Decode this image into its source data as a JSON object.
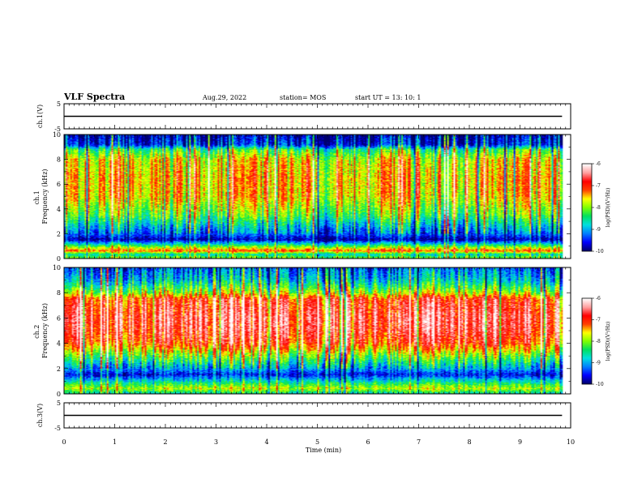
{
  "header": {
    "title": "VLF Spectra",
    "date": "Aug.29, 2022",
    "station": "station= MOS",
    "start": "start  UT  =   13: 10: 1"
  },
  "colors": {
    "scale": [
      "#00006e",
      "#0000ff",
      "#0080ff",
      "#00e0e0",
      "#00e060",
      "#80ff00",
      "#ffff00",
      "#ff4000",
      "#ff0000",
      "#ffa0a0",
      "#ffffff"
    ]
  },
  "chart_data": [
    {
      "type": "line",
      "id": "ch1-waveform",
      "ylabel": "ch.1(V)",
      "ylim": [
        -5,
        5
      ],
      "yticks": [
        "5",
        "-5"
      ],
      "x": [
        0,
        9.83
      ],
      "values": [
        0,
        0
      ]
    },
    {
      "type": "heatmap",
      "id": "ch1-spectrogram",
      "ylabel": "ch.1 Frequency (kHz)",
      "ylim": [
        0,
        10
      ],
      "yticks": [
        "0",
        "2",
        "4",
        "6",
        "8",
        "10"
      ],
      "xlim": [
        0,
        10
      ],
      "data_end_min": 9.83,
      "colorbar": {
        "label": "log(PSD)(V²/Hz)",
        "range": [
          -10,
          -6
        ],
        "ticks": [
          "-6",
          "-7",
          "-8",
          "-9",
          "-10"
        ]
      },
      "profile": [
        {
          "f": 0.0,
          "v": -8.0
        },
        {
          "f": 0.3,
          "v": -8.7
        },
        {
          "f": 0.6,
          "v": -7.2
        },
        {
          "f": 1.0,
          "v": -8.3
        },
        {
          "f": 1.5,
          "v": -9.9
        },
        {
          "f": 1.9,
          "v": -9.4
        },
        {
          "f": 2.5,
          "v": -9.0
        },
        {
          "f": 3.5,
          "v": -8.2
        },
        {
          "f": 5.0,
          "v": -7.6
        },
        {
          "f": 6.5,
          "v": -7.5
        },
        {
          "f": 8.0,
          "v": -7.7
        },
        {
          "f": 8.8,
          "v": -8.4
        },
        {
          "f": 9.2,
          "v": -9.6
        },
        {
          "f": 10.0,
          "v": -9.9
        }
      ]
    },
    {
      "type": "heatmap",
      "id": "ch2-spectrogram",
      "ylabel": "ch.2 Frequency (kHz)",
      "ylim": [
        0,
        10
      ],
      "yticks": [
        "0",
        "2",
        "4",
        "6",
        "8",
        "10"
      ],
      "xlim": [
        0,
        10
      ],
      "data_end_min": 9.83,
      "colorbar": {
        "label": "log(PSD)(V²/Hz)",
        "range": [
          -10,
          -6
        ],
        "ticks": [
          "-6",
          "-7",
          "-8",
          "-9",
          "-10"
        ]
      },
      "profile": [
        {
          "f": 0.0,
          "v": -8.6
        },
        {
          "f": 0.4,
          "v": -7.8
        },
        {
          "f": 0.8,
          "v": -8.4
        },
        {
          "f": 1.5,
          "v": -9.6
        },
        {
          "f": 2.0,
          "v": -9.0
        },
        {
          "f": 3.0,
          "v": -8.0
        },
        {
          "f": 4.0,
          "v": -7.0
        },
        {
          "f": 5.0,
          "v": -6.7
        },
        {
          "f": 6.0,
          "v": -6.6
        },
        {
          "f": 7.5,
          "v": -6.9
        },
        {
          "f": 8.0,
          "v": -7.8
        },
        {
          "f": 9.0,
          "v": -8.8
        },
        {
          "f": 10.0,
          "v": -9.3
        }
      ]
    },
    {
      "type": "line",
      "id": "ch3-waveform",
      "ylabel": "ch.3(V)",
      "ylim": [
        -5,
        5
      ],
      "yticks": [
        "5",
        "-5"
      ],
      "x": [
        0,
        9.83
      ],
      "values": [
        0,
        0
      ]
    }
  ],
  "xaxis": {
    "label": "Time (min)",
    "ticks": [
      "0",
      "1",
      "2",
      "3",
      "4",
      "5",
      "6",
      "7",
      "8",
      "9",
      "10"
    ],
    "range": [
      0,
      10
    ]
  }
}
